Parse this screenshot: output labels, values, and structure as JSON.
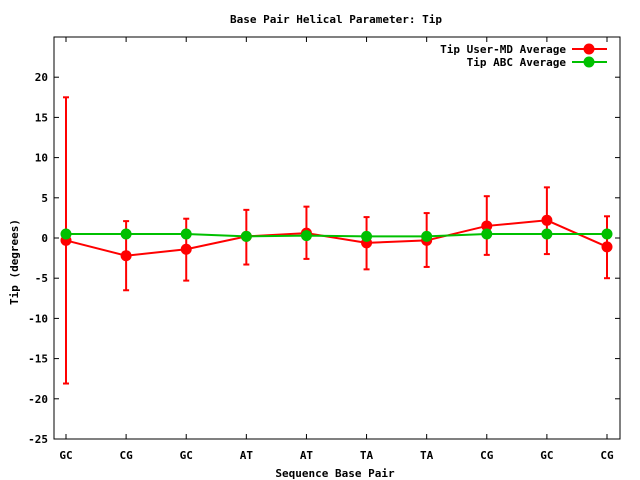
{
  "chart_data": {
    "type": "line",
    "title": "Base Pair Helical Parameter: Tip",
    "xlabel": "Sequence Base Pair",
    "ylabel": "Tip (degrees)",
    "categories": [
      "GC",
      "CG",
      "GC",
      "AT",
      "AT",
      "TA",
      "TA",
      "CG",
      "GC",
      "CG"
    ],
    "ylim": [
      -25,
      25
    ],
    "yticks": [
      -25,
      -20,
      -15,
      -10,
      -5,
      0,
      5,
      10,
      15,
      20
    ],
    "legend_position": "top-right",
    "grid": false,
    "series": [
      {
        "name": "Tip User-MD Average",
        "color": "#ff0000",
        "values": [
          -0.3,
          -2.2,
          -1.4,
          0.2,
          0.6,
          -0.6,
          -0.3,
          1.5,
          2.2,
          -1.1
        ],
        "error_low": [
          -18.1,
          -6.5,
          -5.3,
          -3.3,
          -2.6,
          -3.9,
          -3.6,
          -2.1,
          -2.0,
          -5.0
        ],
        "error_high": [
          17.5,
          2.1,
          2.4,
          3.5,
          3.9,
          2.6,
          3.1,
          5.2,
          6.3,
          2.7
        ]
      },
      {
        "name": "Tip ABC Average",
        "color": "#00c000",
        "values": [
          0.5,
          0.5,
          0.5,
          0.2,
          0.3,
          0.2,
          0.2,
          0.5,
          0.5,
          0.5
        ]
      }
    ]
  }
}
